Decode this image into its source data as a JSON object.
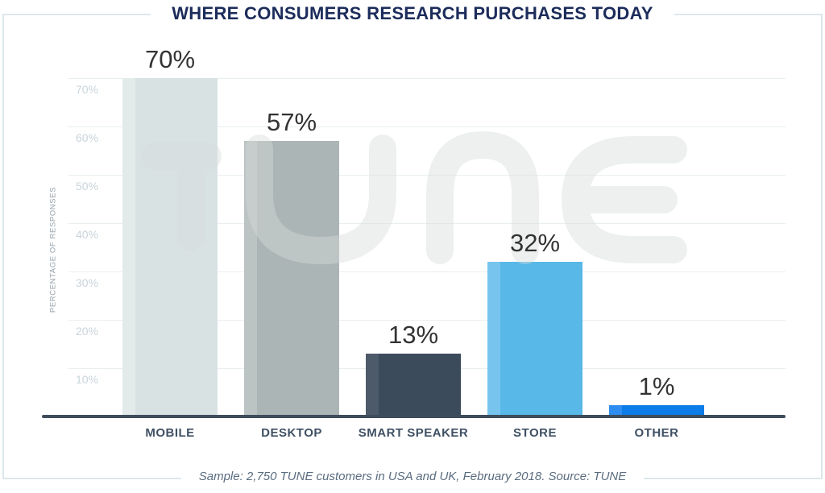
{
  "title": "WHERE CONSUMERS RESEARCH PURCHASES TODAY",
  "footer": "Sample: 2,750 TUNE customers in USA and UK, February 2018. Source: TUNE",
  "watermark": "TUNE",
  "y_axis": {
    "label": "PERCENTAGE OF RESPONSES",
    "ticks": [
      {
        "value": 10,
        "label": "10%"
      },
      {
        "value": 20,
        "label": "20%"
      },
      {
        "value": 30,
        "label": "30%"
      },
      {
        "value": 40,
        "label": "40%"
      },
      {
        "value": 50,
        "label": "50%"
      },
      {
        "value": 60,
        "label": "60%"
      },
      {
        "value": 70,
        "label": "70%"
      }
    ]
  },
  "chart_data": {
    "type": "bar",
    "title": "WHERE CONSUMERS RESEARCH PURCHASES TODAY",
    "categories": [
      "MOBILE",
      "DESKTOP",
      "SMART SPEAKER",
      "STORE",
      "OTHER"
    ],
    "values": [
      70,
      57,
      13,
      32,
      1
    ],
    "value_labels": [
      "70%",
      "57%",
      "13%",
      "32%",
      "1%"
    ],
    "xlabel": "",
    "ylabel": "PERCENTAGE OF RESPONSES",
    "ylim": [
      0,
      75
    ],
    "grid": true,
    "legend": false,
    "bar_colors": [
      "#d8e2e3",
      "#acb5b5",
      "#3c4b5c",
      "#58b8e7",
      "#0b7ce8"
    ],
    "bar_highlight_colors": [
      "#e2eaea",
      "#bcc3c3",
      "#4d5a6a",
      "#77c5ee",
      "#2f8cf0"
    ]
  },
  "colors": {
    "title_color": "#1c2c5b",
    "border_color": "#dce7ea",
    "axis_line": "#3e4c5c",
    "gridline": "#e9eff1",
    "tick_label": "#c9d4da",
    "category_label": "#3f5064",
    "data_label": "#333333",
    "axis_title": "#97a2ab",
    "footer_color": "#5a6c80",
    "watermark": "#d7dcdd",
    "page_bg": "#ffffff"
  }
}
